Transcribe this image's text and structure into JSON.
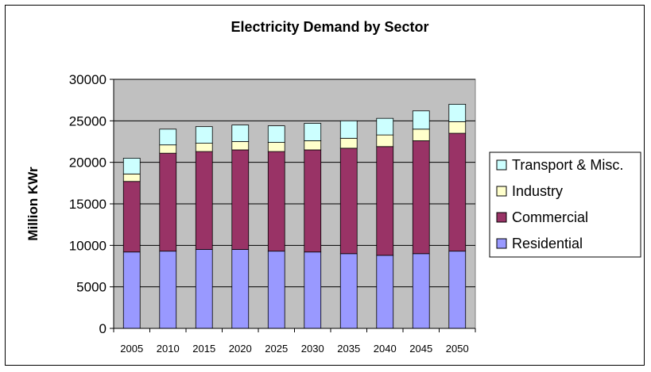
{
  "chart_data": {
    "type": "bar",
    "stacked": true,
    "title": "Electricity Demand by Sector",
    "xlabel": "",
    "ylabel": "Million KWr",
    "ylim": [
      0,
      30000
    ],
    "yticks": [
      0,
      5000,
      10000,
      15000,
      20000,
      25000,
      30000
    ],
    "grid": true,
    "legend_position": "right",
    "categories": [
      "2005",
      "2010",
      "2015",
      "2020",
      "2025",
      "2030",
      "2035",
      "2040",
      "2045",
      "2050"
    ],
    "series": [
      {
        "name": "Residential",
        "color": "#9999ff",
        "values": [
          9200,
          9300,
          9500,
          9500,
          9300,
          9200,
          9000,
          8800,
          9000,
          9300
        ]
      },
      {
        "name": "Commercial",
        "color": "#993366",
        "values": [
          8500,
          11800,
          11800,
          12000,
          12000,
          12300,
          12700,
          13100,
          13600,
          14200
        ]
      },
      {
        "name": "Industry",
        "color": "#ffffcc",
        "values": [
          900,
          1000,
          1000,
          1000,
          1100,
          1100,
          1200,
          1400,
          1400,
          1400
        ]
      },
      {
        "name": "Transport & Misc.",
        "color": "#ccffff",
        "values": [
          1900,
          1900,
          2000,
          2000,
          2000,
          2100,
          2100,
          2000,
          2200,
          2100
        ]
      }
    ],
    "legend_order": [
      "Transport & Misc.",
      "Industry",
      "Commercial",
      "Residential"
    ],
    "plot_background": "#c0c0c0"
  }
}
